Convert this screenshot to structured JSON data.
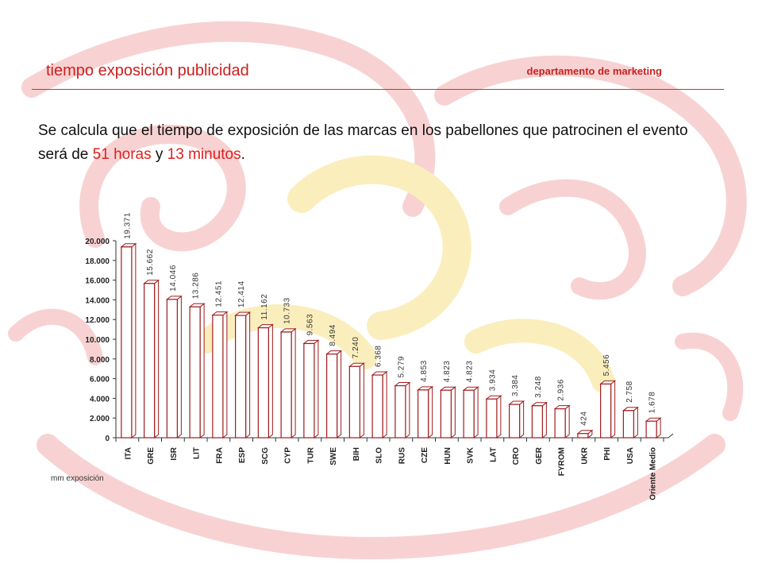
{
  "header": {
    "title": "tiempo exposición publicidad",
    "department": "departamento de marketing"
  },
  "intro": {
    "text_before": "Se calcula que el tiempo de exposición de las marcas en los pabellones que patrocinen el evento será de ",
    "hours": "51 horas",
    "connector": " y ",
    "minutes": "13 minutos",
    "text_after": "."
  },
  "colors": {
    "accent": "#cc1f1f",
    "bar_outline": "#a01c1c",
    "watermark_red": "#f6c9c9",
    "watermark_yellow": "#fbf1c4"
  },
  "chart_data": {
    "type": "bar",
    "style": "3d",
    "categories": [
      "ITA",
      "GRE",
      "ISR",
      "LIT",
      "FRA",
      "ESP",
      "SCG",
      "CYP",
      "TUR",
      "SWE",
      "BIH",
      "SLO",
      "RUS",
      "CZE",
      "HUN",
      "SVK",
      "LAT",
      "CRO",
      "GER",
      "FYROM",
      "UKR",
      "PHI",
      "USA",
      "Oriente Medio"
    ],
    "values": [
      19371,
      15662,
      14046,
      13286,
      12451,
      12414,
      11162,
      10733,
      9563,
      8494,
      7240,
      6368,
      5279,
      4853,
      4823,
      4823,
      3934,
      3384,
      3248,
      2936,
      424,
      5456,
      2758,
      1678
    ],
    "value_labels": [
      "19.371",
      "15.662",
      "14.046",
      "13.286",
      "12.451",
      "12.414",
      "11.162",
      "10.733",
      "9.563",
      "8.494",
      "7.240",
      "6.368",
      "5.279",
      "4.853",
      "4.823",
      "4.823",
      "3.934",
      "3.384",
      "3.248",
      "2.936",
      "424",
      "5.456",
      "2.758",
      "1.678"
    ],
    "yticks": [
      0,
      2000,
      4000,
      6000,
      8000,
      10000,
      12000,
      14000,
      16000,
      18000,
      20000
    ],
    "ytick_labels": [
      "0",
      "2.000",
      "4.000",
      "6.000",
      "8.000",
      "10.000",
      "12.000",
      "14.000",
      "16.000",
      "18.000",
      "20.000"
    ],
    "ylim": [
      0,
      20000
    ],
    "ylabel": "mm exposición",
    "grid": false,
    "legend": "none"
  }
}
